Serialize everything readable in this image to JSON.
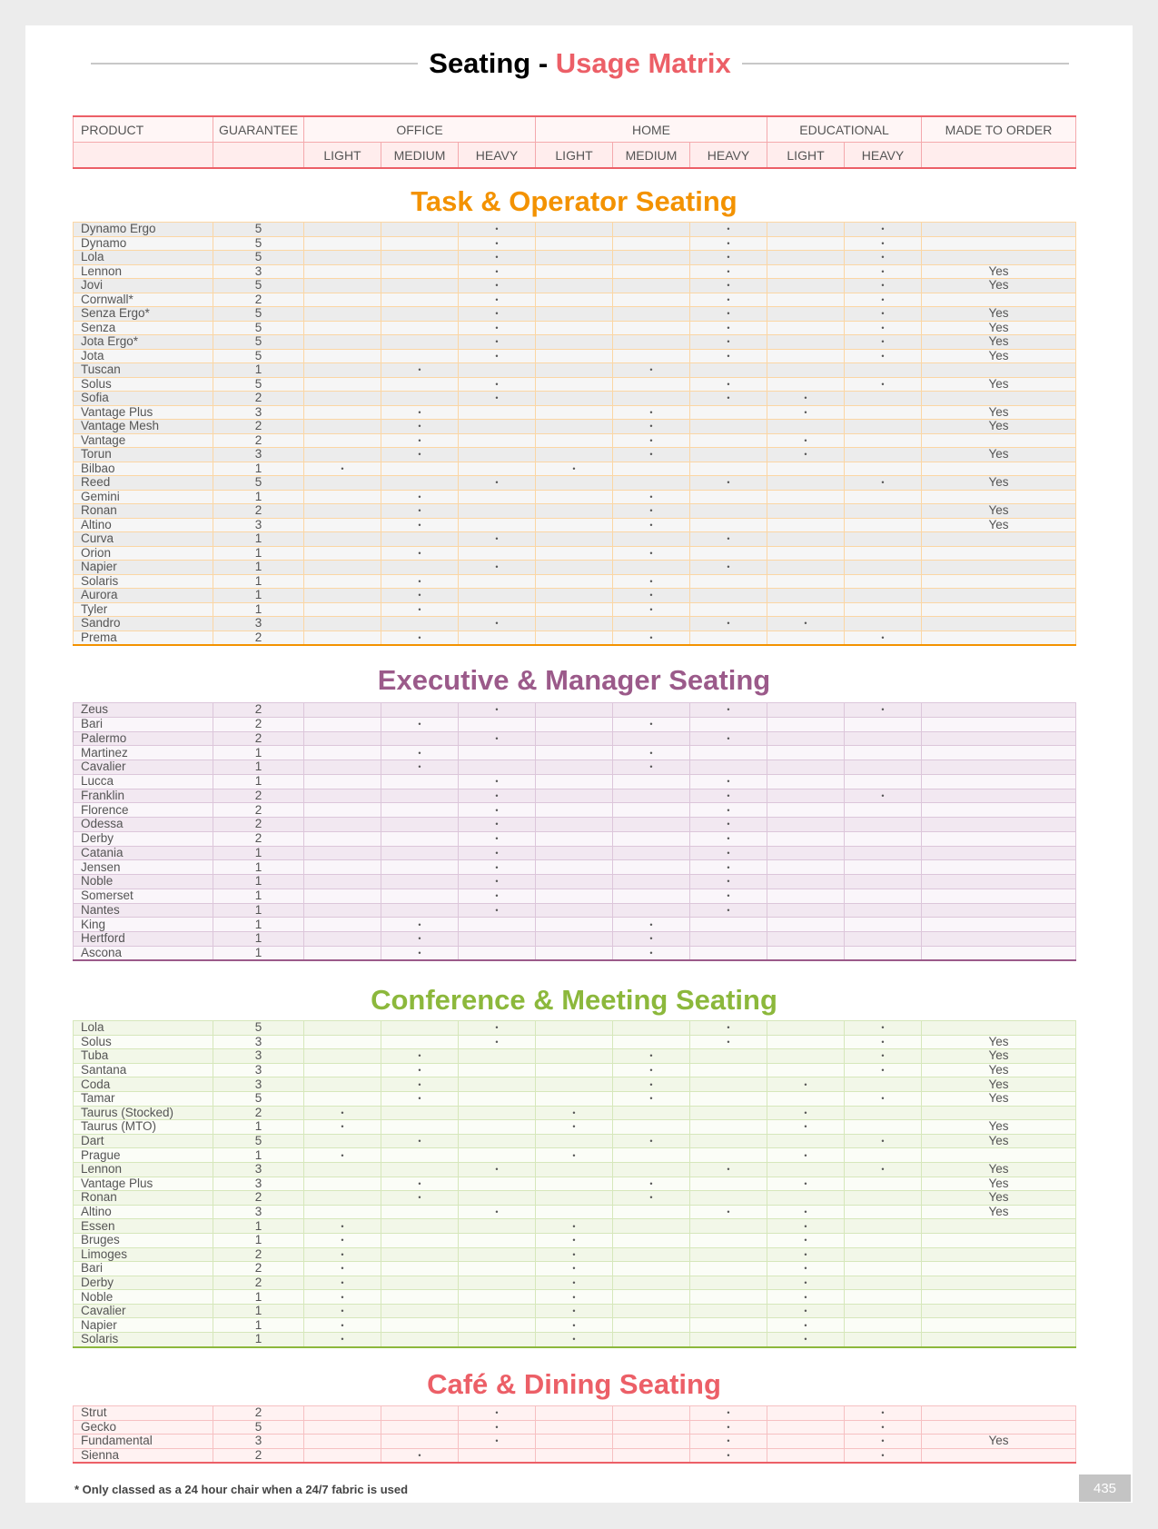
{
  "title": {
    "prefix": "Seating - ",
    "accent": "Usage Matrix"
  },
  "colors": {
    "task": "#f39200",
    "executive": "#9b5a8a",
    "conference": "#8cb83c",
    "cafe": "#ec5f67",
    "title_accent": "#ec5f67"
  },
  "header": {
    "product": "PRODUCT",
    "guarantee": "GUARANTEE",
    "office": "OFFICE",
    "home": "HOME",
    "educational": "EDUCATIONAL",
    "made_to_order": "MADE TO ORDER",
    "light": "LIGHT",
    "medium": "MEDIUM",
    "heavy": "HEAVY"
  },
  "mark_symbol": "•",
  "column_order": [
    "office-light",
    "office-medium",
    "office-heavy",
    "home-light",
    "home-medium",
    "home-heavy",
    "educational-light",
    "educational-heavy"
  ],
  "sections": [
    {
      "key": "task",
      "title": "Task & Operator Seating",
      "rows": [
        [
          "Dynamo Ergo",
          "5",
          "00100101",
          ""
        ],
        [
          "Dynamo",
          "5",
          "00100101",
          ""
        ],
        [
          "Lola",
          "5",
          "00100101",
          ""
        ],
        [
          "Lennon",
          "3",
          "00100101",
          "Yes"
        ],
        [
          "Jovi",
          "5",
          "00100101",
          "Yes"
        ],
        [
          "Cornwall*",
          "2",
          "00100101",
          ""
        ],
        [
          "Senza Ergo*",
          "5",
          "00100101",
          "Yes"
        ],
        [
          "Senza",
          "5",
          "00100101",
          "Yes"
        ],
        [
          "Jota Ergo*",
          "5",
          "00100101",
          "Yes"
        ],
        [
          "Jota",
          "5",
          "00100101",
          "Yes"
        ],
        [
          "Tuscan",
          "1",
          "01001000",
          ""
        ],
        [
          "Solus",
          "5",
          "00100101",
          "Yes"
        ],
        [
          "Sofia",
          "2",
          "00100110",
          ""
        ],
        [
          "Vantage Plus",
          "3",
          "01001010",
          "Yes"
        ],
        [
          "Vantage Mesh",
          "2",
          "01001000",
          "Yes"
        ],
        [
          "Vantage",
          "2",
          "01001010",
          ""
        ],
        [
          "Torun",
          "3",
          "01001010",
          "Yes"
        ],
        [
          "Bilbao",
          "1",
          "10010000",
          ""
        ],
        [
          "Reed",
          "5",
          "00100101",
          "Yes"
        ],
        [
          "Gemini",
          "1",
          "01001000",
          ""
        ],
        [
          "Ronan",
          "2",
          "01001000",
          "Yes"
        ],
        [
          "Altino",
          "3",
          "01001000",
          "Yes"
        ],
        [
          "Curva",
          "1",
          "00100100",
          ""
        ],
        [
          "Orion",
          "1",
          "01001000",
          ""
        ],
        [
          "Napier",
          "1",
          "00100100",
          ""
        ],
        [
          "Solaris",
          "1",
          "01001000",
          ""
        ],
        [
          "Aurora",
          "1",
          "01001000",
          ""
        ],
        [
          "Tyler",
          "1",
          "01001000",
          ""
        ],
        [
          "Sandro",
          "3",
          "00100110",
          ""
        ],
        [
          "Prema",
          "2",
          "01001001",
          ""
        ]
      ]
    },
    {
      "key": "executive",
      "title": "Executive & Manager Seating",
      "rows": [
        [
          "Zeus",
          "2",
          "00100101",
          ""
        ],
        [
          "Bari",
          "2",
          "01001000",
          ""
        ],
        [
          "Palermo",
          "2",
          "00100100",
          ""
        ],
        [
          "Martinez",
          "1",
          "01001000",
          ""
        ],
        [
          "Cavalier",
          "1",
          "01001000",
          ""
        ],
        [
          "Lucca",
          "1",
          "00100100",
          ""
        ],
        [
          "Franklin",
          "2",
          "00100101",
          ""
        ],
        [
          "Florence",
          "2",
          "00100100",
          ""
        ],
        [
          "Odessa",
          "2",
          "00100100",
          ""
        ],
        [
          "Derby",
          "2",
          "00100100",
          ""
        ],
        [
          "Catania",
          "1",
          "00100100",
          ""
        ],
        [
          "Jensen",
          "1",
          "00100100",
          ""
        ],
        [
          "Noble",
          "1",
          "00100100",
          ""
        ],
        [
          "Somerset",
          "1",
          "00100100",
          ""
        ],
        [
          "Nantes",
          "1",
          "00100100",
          ""
        ],
        [
          "King",
          "1",
          "01001000",
          ""
        ],
        [
          "Hertford",
          "1",
          "01001000",
          ""
        ],
        [
          "Ascona",
          "1",
          "01001000",
          ""
        ]
      ]
    },
    {
      "key": "conference",
      "title": "Conference & Meeting Seating",
      "rows": [
        [
          "Lola",
          "5",
          "00100101",
          ""
        ],
        [
          "Solus",
          "3",
          "00100101",
          "Yes"
        ],
        [
          "Tuba",
          "3",
          "01001001",
          "Yes"
        ],
        [
          "Santana",
          "3",
          "01001001",
          "Yes"
        ],
        [
          "Coda",
          "3",
          "01001010",
          "Yes"
        ],
        [
          "Tamar",
          "5",
          "01001001",
          "Yes"
        ],
        [
          "Taurus (Stocked)",
          "2",
          "10010010",
          ""
        ],
        [
          "Taurus (MTO)",
          "1",
          "10010010",
          "Yes"
        ],
        [
          "Dart",
          "5",
          "01001001",
          "Yes"
        ],
        [
          "Prague",
          "1",
          "10010010",
          ""
        ],
        [
          "Lennon",
          "3",
          "00100101",
          "Yes"
        ],
        [
          "Vantage Plus",
          "3",
          "01001010",
          "Yes"
        ],
        [
          "Ronan",
          "2",
          "01001000",
          "Yes"
        ],
        [
          "Altino",
          "3",
          "00100110",
          "Yes"
        ],
        [
          "Essen",
          "1",
          "10010010",
          ""
        ],
        [
          "Bruges",
          "1",
          "10010010",
          ""
        ],
        [
          "Limoges",
          "2",
          "10010010",
          ""
        ],
        [
          "Bari",
          "2",
          "10010010",
          ""
        ],
        [
          "Derby",
          "2",
          "10010010",
          ""
        ],
        [
          "Noble",
          "1",
          "10010010",
          ""
        ],
        [
          "Cavalier",
          "1",
          "10010010",
          ""
        ],
        [
          "Napier",
          "1",
          "10010010",
          ""
        ],
        [
          "Solaris",
          "1",
          "10010010",
          ""
        ]
      ]
    },
    {
      "key": "cafe",
      "title": "Café & Dining Seating",
      "rows": [
        [
          "Strut",
          "2",
          "00100101",
          ""
        ],
        [
          "Gecko",
          "5",
          "00100101",
          ""
        ],
        [
          "Fundamental",
          "3",
          "00100101",
          "Yes"
        ],
        [
          "Sienna",
          "2",
          "01000101",
          ""
        ]
      ]
    }
  ],
  "footnote": "* Only classed as a 24 hour chair when a 24/7 fabric is used",
  "page_number": "435"
}
